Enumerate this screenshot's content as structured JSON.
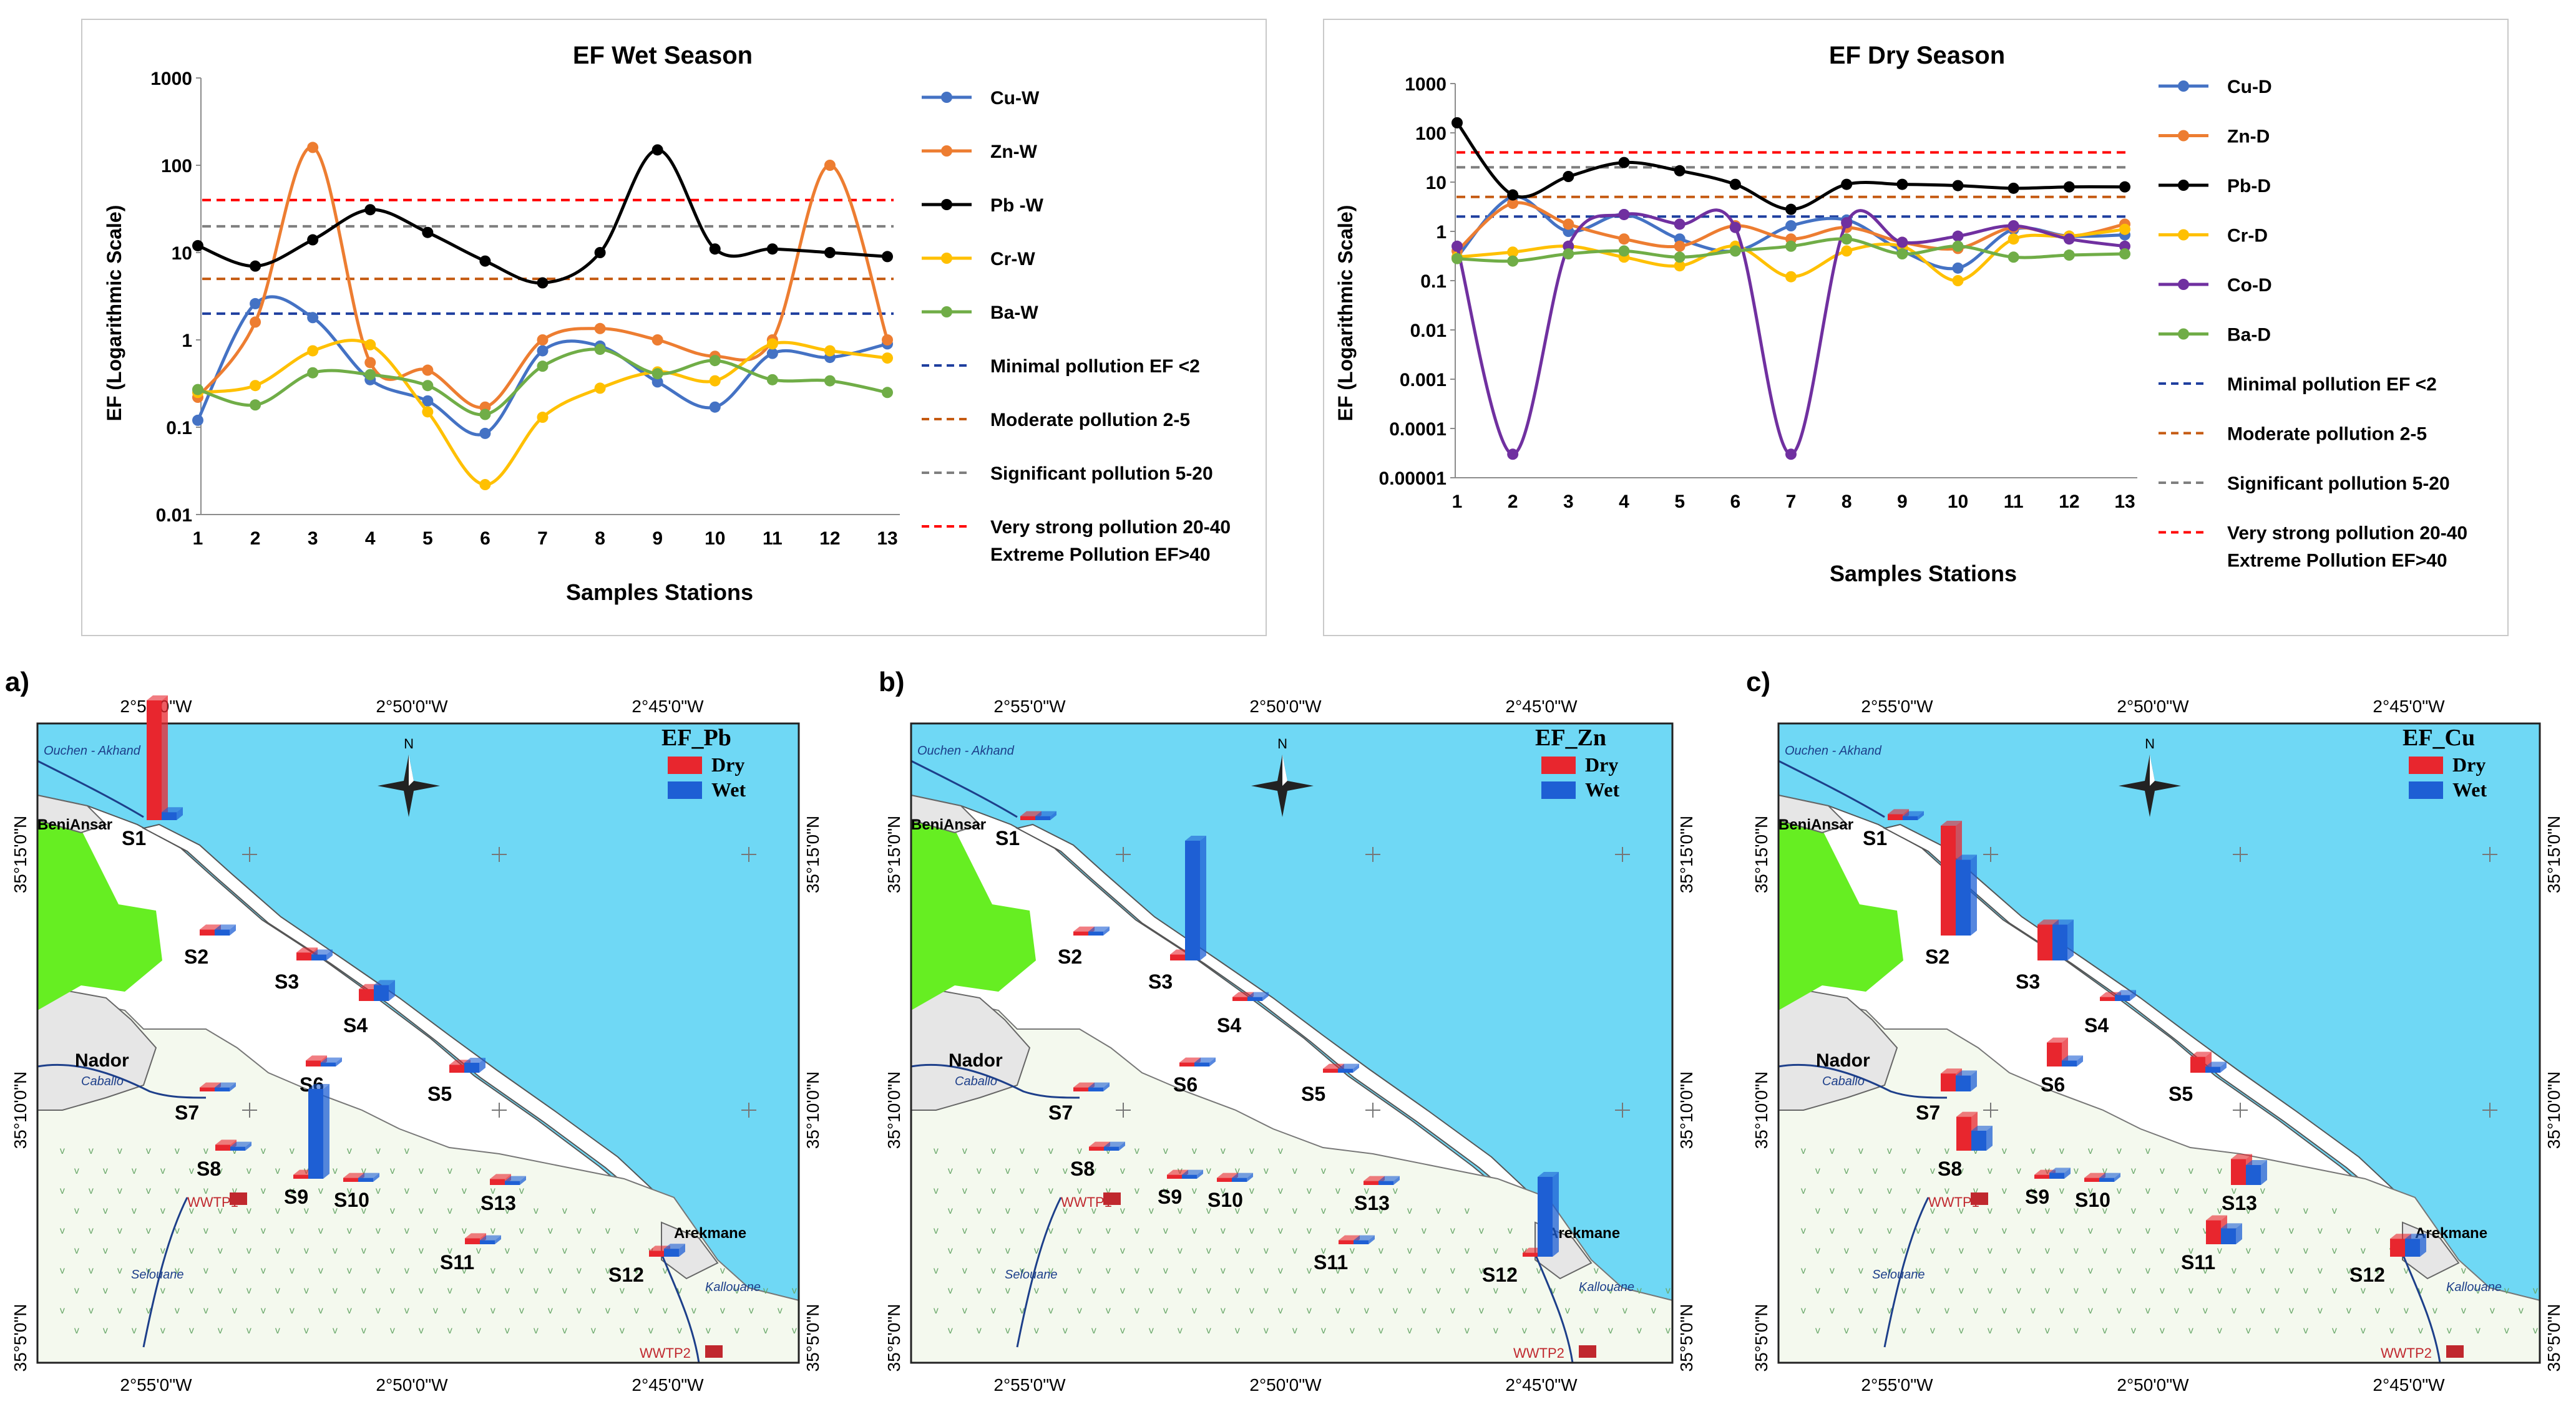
{
  "chart_data": [
    {
      "type": "line",
      "title": "EF Wet Season",
      "xlabel": "Samples Stations",
      "ylabel": "EF (Logarithmic Scale)",
      "yscale": "log",
      "ylim": [
        0.01,
        1000
      ],
      "yticks": [
        "0.01",
        "0.1",
        "1",
        "10",
        "100",
        "1000"
      ],
      "x": [
        1,
        2,
        3,
        4,
        5,
        6,
        7,
        8,
        9,
        10,
        11,
        12,
        13
      ],
      "series": [
        {
          "name": "Cu-W",
          "color": "#4472c4",
          "values": [
            0.12,
            2.6,
            1.8,
            0.35,
            0.2,
            0.085,
            0.75,
            0.85,
            0.33,
            0.17,
            0.7,
            0.63,
            0.9
          ]
        },
        {
          "name": "Zn-W",
          "color": "#ed7d31",
          "values": [
            0.22,
            1.6,
            160,
            0.55,
            0.45,
            0.17,
            1.0,
            1.35,
            1.0,
            0.65,
            1.0,
            100,
            1.0
          ]
        },
        {
          "name": "Pb -W",
          "color": "#000000",
          "values": [
            12,
            7,
            14,
            31,
            17,
            8,
            4.5,
            10,
            150,
            11,
            11,
            10,
            9
          ]
        },
        {
          "name": "Cr-W",
          "color": "#ffc000",
          "values": [
            0.25,
            0.3,
            0.75,
            0.88,
            0.15,
            0.022,
            0.13,
            0.28,
            0.43,
            0.34,
            0.9,
            0.75,
            0.62
          ]
        },
        {
          "name": "Ba-W",
          "color": "#70ad47",
          "values": [
            0.27,
            0.18,
            0.42,
            0.4,
            0.3,
            0.14,
            0.5,
            0.78,
            0.41,
            0.58,
            0.35,
            0.34,
            0.25
          ]
        }
      ],
      "thresholds": [
        {
          "name": "Minimal pollution EF <2",
          "value": 2,
          "color": "#1f3f9f"
        },
        {
          "name": "Moderate pollution 2-5",
          "value": 5,
          "color": "#c55a11"
        },
        {
          "name": "Significant pollution 5-20",
          "value": 20,
          "color": "#7f7f7f"
        },
        {
          "name": "Very strong pollution 20-40",
          "value": 40,
          "color": "#ff0000"
        }
      ],
      "legend_extra": "Extreme Pollution EF>40"
    },
    {
      "type": "line",
      "title": "EF Dry Season",
      "xlabel": "Samples Stations",
      "ylabel": "EF (Logarithmic Scale)",
      "yscale": "log",
      "ylim": [
        1e-05,
        1000
      ],
      "yticks": [
        "0.00001",
        "0.0001",
        "0.001",
        "0.01",
        "0.1",
        "1",
        "10",
        "100",
        "1000"
      ],
      "x": [
        1,
        2,
        3,
        4,
        5,
        6,
        7,
        8,
        9,
        10,
        11,
        12,
        13
      ],
      "series": [
        {
          "name": "Cu-D",
          "color": "#4472c4",
          "values": [
            0.3,
            5,
            1.0,
            2.2,
            0.7,
            0.4,
            1.3,
            1.7,
            0.4,
            0.18,
            1.1,
            0.8,
            0.85
          ]
        },
        {
          "name": "Zn-D",
          "color": "#ed7d31",
          "values": [
            0.4,
            3.7,
            1.4,
            0.7,
            0.5,
            1.3,
            0.7,
            1.2,
            0.6,
            0.45,
            1.2,
            0.8,
            1.4
          ]
        },
        {
          "name": "Pb-D",
          "color": "#000000",
          "values": [
            160,
            5.5,
            13,
            25,
            17,
            9,
            2.8,
            9,
            9,
            8.5,
            7.5,
            8,
            8
          ]
        },
        {
          "name": "Cr-D",
          "color": "#ffc000",
          "values": [
            0.3,
            0.38,
            0.5,
            0.3,
            0.2,
            0.5,
            0.12,
            0.4,
            0.5,
            0.1,
            0.7,
            0.8,
            1.1
          ]
        },
        {
          "name": "Co-D",
          "color": "#7030a0",
          "values": [
            0.5,
            3e-05,
            0.5,
            2.2,
            1.4,
            1.2,
            3e-05,
            1.5,
            0.6,
            0.8,
            1.3,
            0.7,
            0.5
          ]
        },
        {
          "name": "Ba-D",
          "color": "#70ad47",
          "values": [
            0.28,
            0.25,
            0.35,
            0.4,
            0.3,
            0.4,
            0.5,
            0.7,
            0.35,
            0.5,
            0.3,
            0.33,
            0.35
          ]
        }
      ],
      "thresholds": [
        {
          "name": "Minimal pollution EF <2",
          "value": 2,
          "color": "#1f3f9f"
        },
        {
          "name": "Moderate pollution 2-5",
          "value": 5,
          "color": "#c55a11"
        },
        {
          "name": "Significant pollution 5-20",
          "value": 20,
          "color": "#7f7f7f"
        },
        {
          "name": "Very strong pollution 20-40",
          "value": 40,
          "color": "#ff0000"
        }
      ],
      "legend_extra": "Extreme Pollution EF>40"
    }
  ],
  "maps": [
    {
      "panel": "a)",
      "title": "EF_Pb",
      "legend": [
        "Dry",
        "Wet"
      ],
      "bars": [
        {
          "station": "S1",
          "dry": 60,
          "wet": 4
        },
        {
          "station": "S2",
          "dry": 3,
          "wet": 3
        },
        {
          "station": "S3",
          "dry": 4,
          "wet": 3
        },
        {
          "station": "S4",
          "dry": 6,
          "wet": 8
        },
        {
          "station": "S5",
          "dry": 4,
          "wet": 5
        },
        {
          "station": "S6",
          "dry": 3,
          "wet": 2
        },
        {
          "station": "S7",
          "dry": 2,
          "wet": 2
        },
        {
          "station": "S8",
          "dry": 3,
          "wet": 2
        },
        {
          "station": "S9",
          "dry": 2,
          "wet": 45
        },
        {
          "station": "S10",
          "dry": 2,
          "wet": 2
        },
        {
          "station": "S11",
          "dry": 3,
          "wet": 2
        },
        {
          "station": "S12",
          "dry": 3,
          "wet": 4
        },
        {
          "station": "S13",
          "dry": 3,
          "wet": 2
        }
      ]
    },
    {
      "panel": "b)",
      "title": "EF_Zn",
      "legend": [
        "Dry",
        "Wet"
      ],
      "bars": [
        {
          "station": "S1",
          "dry": 2,
          "wet": 2
        },
        {
          "station": "S2",
          "dry": 2,
          "wet": 2
        },
        {
          "station": "S3",
          "dry": 3,
          "wet": 60
        },
        {
          "station": "S4",
          "dry": 2,
          "wet": 2
        },
        {
          "station": "S5",
          "dry": 2,
          "wet": 2
        },
        {
          "station": "S6",
          "dry": 2,
          "wet": 2
        },
        {
          "station": "S7",
          "dry": 2,
          "wet": 2
        },
        {
          "station": "S8",
          "dry": 2,
          "wet": 2
        },
        {
          "station": "S9",
          "dry": 2,
          "wet": 2
        },
        {
          "station": "S10",
          "dry": 2,
          "wet": 2
        },
        {
          "station": "S11",
          "dry": 2,
          "wet": 2
        },
        {
          "station": "S12",
          "dry": 2,
          "wet": 40
        },
        {
          "station": "S13",
          "dry": 2,
          "wet": 2
        }
      ]
    },
    {
      "panel": "c)",
      "title": "EF_Cu",
      "legend": [
        "Dry",
        "Wet"
      ],
      "bars": [
        {
          "station": "S1",
          "dry": 3,
          "wet": 2
        },
        {
          "station": "S2",
          "dry": 55,
          "wet": 38
        },
        {
          "station": "S3",
          "dry": 18,
          "wet": 18
        },
        {
          "station": "S4",
          "dry": 2,
          "wet": 3
        },
        {
          "station": "S5",
          "dry": 8,
          "wet": 3
        },
        {
          "station": "S6",
          "dry": 12,
          "wet": 3
        },
        {
          "station": "S7",
          "dry": 9,
          "wet": 8
        },
        {
          "station": "S8",
          "dry": 17,
          "wet": 10
        },
        {
          "station": "S9",
          "dry": 2,
          "wet": 3
        },
        {
          "station": "S10",
          "dry": 2,
          "wet": 2
        },
        {
          "station": "S11",
          "dry": 12,
          "wet": 8
        },
        {
          "station": "S12",
          "dry": 9,
          "wet": 9
        },
        {
          "station": "S13",
          "dry": 13,
          "wet": 10
        }
      ]
    }
  ],
  "map_labels": {
    "lon_ticks": [
      "2°55'0\"W",
      "2°50'0\"W",
      "2°45'0\"W"
    ],
    "lat_ticks": [
      "35°15'0\"N",
      "35°10'0\"N",
      "35°5'0\"N"
    ],
    "north": "N",
    "places": [
      "BeniAnsar",
      "Nador",
      "Arekmane",
      "WWTP1",
      "WWTP2"
    ],
    "rivers": [
      "Ouchen - Akhand",
      "Caballo",
      "Selouane",
      "Kallouane"
    ]
  },
  "colors": {
    "sea": "#6fd8f5",
    "land": "#e6e6e6",
    "green": "#66ee22",
    "dry": "#e8262e",
    "wet": "#1e5fd4"
  }
}
